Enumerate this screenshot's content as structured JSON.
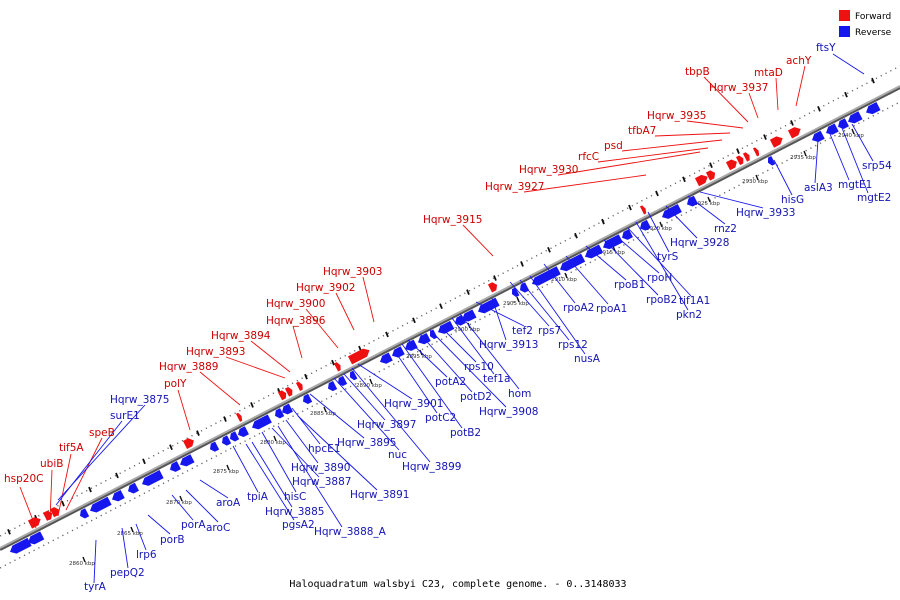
{
  "caption": "Haloquadratum walsbyi C23, complete genome. - 0..3148033",
  "legend": [
    {
      "label": "Forward",
      "color": "#ee1111"
    },
    {
      "label": "Reverse",
      "color": "#1616ee"
    }
  ],
  "colors": {
    "forward": "#ee1111",
    "reverse": "#1616ee",
    "axis": "#888888",
    "forward_text": "#cc0000",
    "reverse_text": "#1414b4"
  },
  "ticks": [
    "2860 kbp",
    "2865 kbp",
    "2870 kbp",
    "2875 kbp",
    "2880 kbp",
    "2885 kbp",
    "2890 kbp",
    "2895 kbp",
    "2900 kbp",
    "2905 kbp",
    "2910 kbp",
    "2915 kbp",
    "2920 kbp",
    "2925 kbp",
    "2930 kbp",
    "2935 kbp",
    "2940 kbp"
  ],
  "forward_labels": [
    "hsp20C",
    "ubiB",
    "tif5A",
    "speB",
    "polY",
    "Hqrw_3889",
    "Hqrw_3893",
    "Hqrw_3894",
    "Hqrw_3896",
    "Hqrw_3900",
    "Hqrw_3902",
    "Hqrw_3903",
    "Hqrw_3915",
    "Hqrw_3927",
    "Hqrw_3930",
    "rfcC",
    "psd",
    "tfbA7",
    "Hqrw_3935",
    "tbpB",
    "Hqrw_3937",
    "mtaD",
    "achY"
  ],
  "reverse_labels": [
    "Hqrw_3875",
    "surE1",
    "ftsY",
    "tyrA",
    "pepQ2",
    "lrp6",
    "porB",
    "porA",
    "aroC",
    "aroA",
    "tpiA",
    "pgsA2",
    "Hqrw_3885",
    "hisC",
    "Hqrw_3887",
    "Hqrw_3888_A",
    "Hqrw_3890",
    "Hqrw_3891",
    "hpcE1",
    "Hqrw_3895",
    "nuc",
    "Hqrw_3897",
    "Hqrw_3899",
    "Hqrw_3901",
    "potC2",
    "potB2",
    "potA2",
    "potD2",
    "Hqrw_3908",
    "rps10",
    "tef1a",
    "hom",
    "tef2",
    "Hqrw_3913",
    "rps7",
    "rps12",
    "nusA",
    "rpoA2",
    "rpoA1",
    "rpoB1",
    "rpoB2",
    "rpoH",
    "tif1A1",
    "pkn2",
    "tyrS",
    "Hqrw_3928",
    "rnz2",
    "Hqrw_3933",
    "hisG",
    "aslA3",
    "mgtE1",
    "mgtE2",
    "srp54"
  ]
}
